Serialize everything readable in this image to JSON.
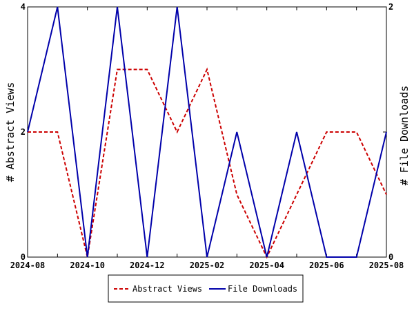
{
  "chart_data": {
    "type": "line",
    "x": [
      "2024-08",
      "2024-09",
      "2024-10",
      "2024-11",
      "2024-12",
      "2025-01",
      "2025-02",
      "2025-03",
      "2025-04",
      "2025-05",
      "2025-06",
      "2025-07",
      "2025-08"
    ],
    "x_tick_labels": [
      "2024-08",
      "2024-10",
      "2024-12",
      "2025-02",
      "2025-04",
      "2025-06",
      "2025-08"
    ],
    "series": [
      {
        "name": "Abstract Views",
        "axis": "left",
        "color": "#cc0000",
        "dash": "dashed",
        "values": [
          2,
          2,
          0,
          3,
          3,
          2,
          3,
          1,
          0,
          1,
          2,
          2,
          1
        ]
      },
      {
        "name": "File Downloads",
        "axis": "right",
        "color": "#0000aa",
        "dash": "solid",
        "values": [
          1,
          2,
          0,
          2,
          0,
          2,
          0,
          1,
          0,
          1,
          0,
          0,
          1
        ]
      }
    ],
    "ylabel_left": "# Abstract Views",
    "ylabel_right": "# File Downloads",
    "ylim_left": [
      0,
      4
    ],
    "ylim_right": [
      0,
      2
    ],
    "yticks_left": [
      "0",
      "2",
      "4"
    ],
    "yticks_right": [
      "0",
      "1",
      "2"
    ],
    "grid": false,
    "legend_position": "bottom-center"
  }
}
